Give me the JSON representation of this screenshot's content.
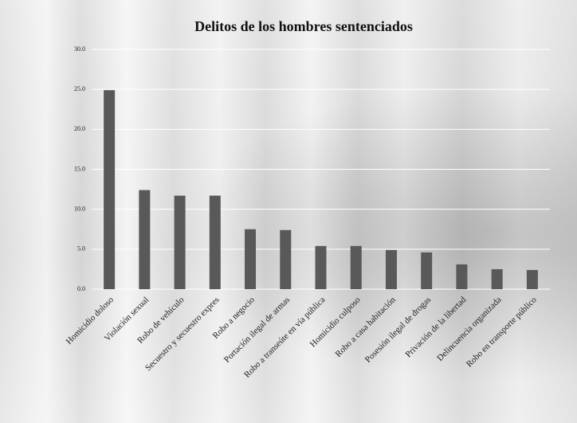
{
  "chart_data": {
    "type": "bar",
    "title": "Delitos de los hombres sentenciados",
    "categories": [
      "Homicidio doloso",
      "Violación sexual",
      "Robo de vehículo",
      "Secuestro y secuestro expres",
      "Robo a negocio",
      "Portación ilegal de armas",
      "Robo a transeúte en vía pública",
      "Homicidio culposo",
      "Robo a casa habitación",
      "Posesión ilegal de drogas",
      "Privación de la libertad",
      "Delincuencia organizada",
      "Robo en transporte público"
    ],
    "values": [
      24.9,
      12.4,
      11.7,
      11.7,
      7.5,
      7.4,
      5.4,
      5.4,
      4.9,
      4.6,
      3.1,
      2.5,
      2.4
    ],
    "color": "#595959",
    "ylim": [
      0,
      30
    ],
    "yticks": [
      {
        "value": 0,
        "label": "0.0"
      },
      {
        "value": 5,
        "label": "5.0"
      },
      {
        "value": 10,
        "label": "10.0"
      },
      {
        "value": 15,
        "label": "15.0"
      },
      {
        "value": 20,
        "label": "20.0"
      },
      {
        "value": 25,
        "label": "25.0"
      },
      {
        "value": 30,
        "label": "30.0"
      }
    ],
    "grid": true
  }
}
